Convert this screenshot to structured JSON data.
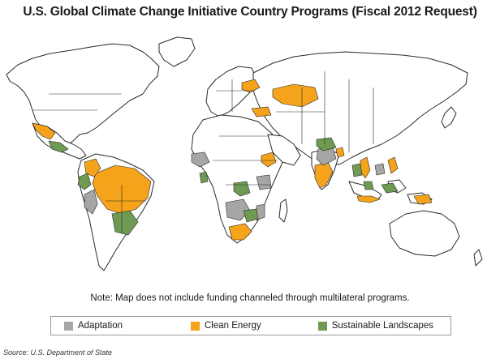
{
  "title": "U.S. Global Climate Change Initiative Country Programs (Fiscal 2012 Request)",
  "note": "Note: Map does not include funding channeled through multilateral programs.",
  "legend": {
    "items": [
      {
        "label": "Adaptation",
        "color": "#a6a6a6"
      },
      {
        "label": "Clean Energy",
        "color": "#f5a31a"
      },
      {
        "label": "Sustainable Landscapes",
        "color": "#6e9a52"
      }
    ]
  },
  "source": "Source: U.S. Department of State",
  "colors": {
    "adaptation": "#a6a6a6",
    "clean_energy": "#f5a31a",
    "sustainable_landscapes": "#6e9a52",
    "land_fill": "#ffffff",
    "outline": "#2a2a2a"
  }
}
